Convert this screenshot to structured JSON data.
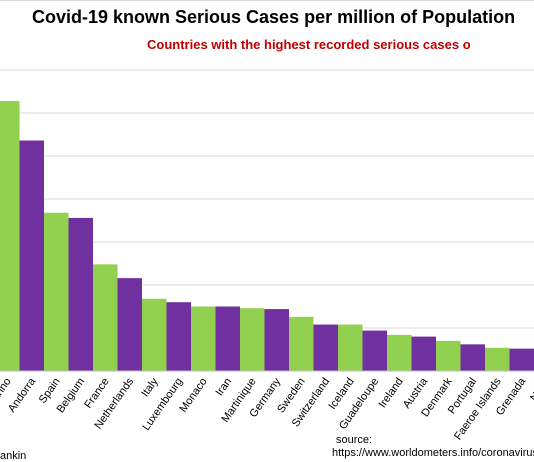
{
  "chart_data": {
    "type": "bar",
    "title": "Covid-19 known Serious Cases per million of Population",
    "subtitle": "Countries with the highest recorded serious cases o",
    "categories": [
      "Marino",
      "Andorra",
      "Spain",
      "Belgium",
      "France",
      "Netherlands",
      "Italy",
      "Luxembourg",
      "Monaco",
      "Iran",
      "Martinique",
      "Germany",
      "Sweden",
      "Switzerland",
      "Iceland",
      "Guadeloupe",
      "Ireland",
      "Austria",
      "Denmark",
      "Portugal",
      "Faeroe Islands",
      "Grenada",
      "Norw"
    ],
    "values": [
      314,
      268,
      184,
      178,
      124,
      108,
      84,
      80,
      75,
      75,
      73,
      72,
      63,
      54,
      54,
      47,
      42,
      40,
      35,
      31,
      27,
      26,
      26
    ],
    "colors": [
      "#92d050",
      "#7030a0"
    ],
    "grid": true,
    "ylim": [
      0,
      700
    ],
    "xlabel": "",
    "ylabel": ""
  },
  "source": {
    "label": "source:",
    "url": "https://www.worldometers.info/coronavirus"
  },
  "author_fragment": "ankin"
}
